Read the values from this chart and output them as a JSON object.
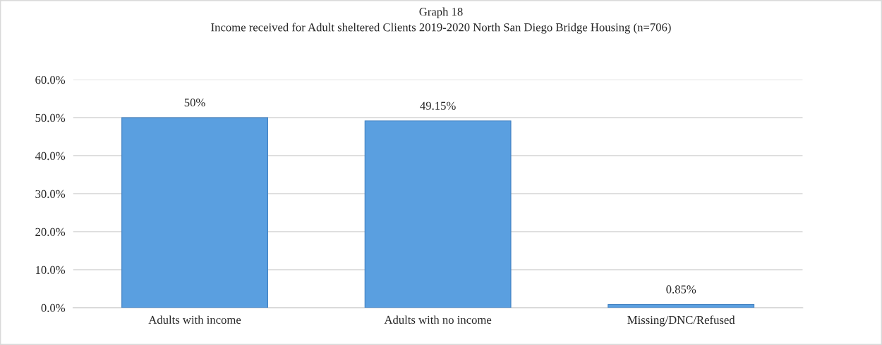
{
  "chart_data": {
    "type": "bar",
    "title": "Graph 18",
    "subtitle": "Income received for Adult sheltered Clients 2019-2020 North San Diego Bridge Housing (n=706)",
    "categories": [
      "Adults with income",
      "Adults with no income",
      "Missing/DNC/Refused"
    ],
    "values": [
      50,
      49.15,
      0.85
    ],
    "color": "#5a9fe0",
    "value_labels": [
      "50%",
      "49.15%",
      "0.85%"
    ],
    "ylim": [
      0,
      60
    ],
    "yticks": [
      {
        "value": 0,
        "label": "0.0%"
      },
      {
        "value": 10,
        "label": "10.0%"
      },
      {
        "value": 20,
        "label": "20.0%"
      },
      {
        "value": 30,
        "label": "30.0%"
      },
      {
        "value": 40,
        "label": "40.0%"
      },
      {
        "value": 50,
        "label": "50.0%"
      },
      {
        "value": 60,
        "label": "60.0%"
      }
    ],
    "grid": "y",
    "legend": false
  }
}
